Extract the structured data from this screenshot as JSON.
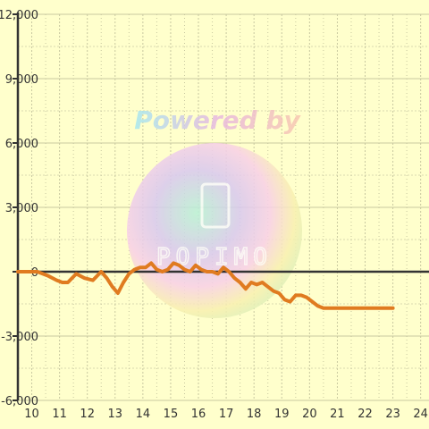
{
  "chart_data": {
    "type": "line",
    "title": "",
    "xlabel": "",
    "ylabel": "",
    "xlim": [
      9.5,
      24.3
    ],
    "ylim": [
      -6000,
      12000
    ],
    "x_ticks": [
      10,
      11,
      12,
      13,
      14,
      15,
      16,
      17,
      18,
      19,
      20,
      21,
      22,
      23,
      24
    ],
    "y_ticks": [
      12000,
      9000,
      6000,
      3000,
      0,
      -3000,
      -6000
    ],
    "y_tick_labels": [
      "12,000",
      "9,000",
      "6,000",
      "3,000",
      "0",
      "-3,000",
      "-6,000"
    ],
    "grid": true,
    "series": [
      {
        "color": "#e07b20",
        "x": [
          9.5,
          9.9,
          10.2,
          10.6,
          10.9,
          11.1,
          11.3,
          11.6,
          11.9,
          12.2,
          12.5,
          12.7,
          12.9,
          13.1,
          13.3,
          13.5,
          13.7,
          13.9,
          14.1,
          14.3,
          14.5,
          14.7,
          14.9,
          15.1,
          15.3,
          15.5,
          15.7,
          15.9,
          16.1,
          16.3,
          16.5,
          16.7,
          16.9,
          17.1,
          17.3,
          17.5,
          17.7,
          17.9,
          18.1,
          18.3,
          18.5,
          18.7,
          18.9,
          19.1,
          19.3,
          19.5,
          19.7,
          19.9,
          20.1,
          20.3,
          20.5,
          20.7,
          21,
          21.5,
          22,
          22.5,
          23
        ],
        "y": [
          0,
          0,
          0,
          -200,
          -400,
          -500,
          -500,
          -100,
          -300,
          -400,
          0,
          -300,
          -700,
          -1000,
          -500,
          -100,
          100,
          200,
          200,
          400,
          100,
          0,
          100,
          400,
          300,
          100,
          0,
          300,
          100,
          0,
          0,
          -100,
          200,
          0,
          -300,
          -500,
          -800,
          -500,
          -600,
          -500,
          -700,
          -900,
          -1000,
          -1300,
          -1400,
          -1100,
          -1100,
          -1200,
          -1400,
          -1600,
          -1700,
          -1700,
          -1700,
          -1700,
          -1700,
          -1700,
          -1700
        ]
      }
    ]
  },
  "watermark": {
    "text": "Powered by",
    "logo_text": "POPIMO"
  }
}
